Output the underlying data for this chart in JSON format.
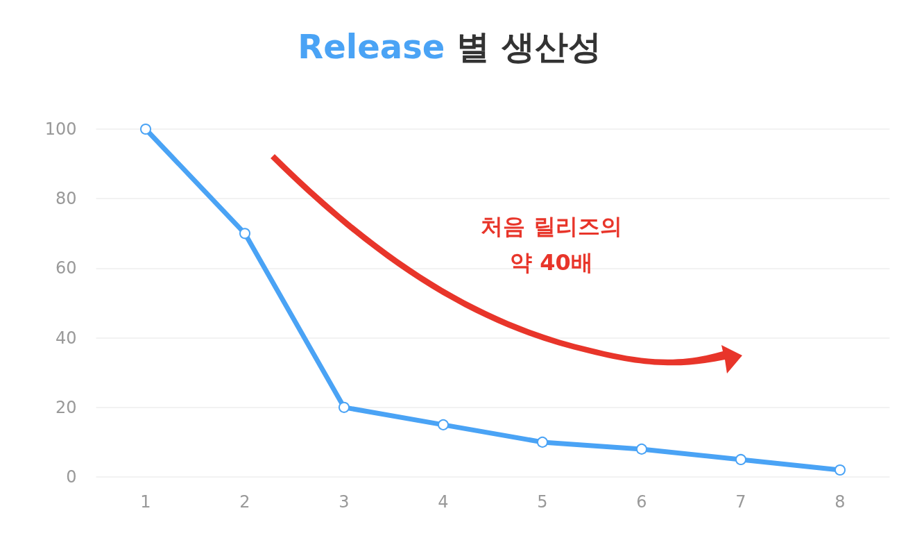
{
  "chart_data": {
    "type": "line",
    "title": "Release 별 생산성",
    "categories": [
      "1",
      "2",
      "3",
      "4",
      "5",
      "6",
      "7",
      "8"
    ],
    "series": [
      {
        "color": "#4aa3f5",
        "values": [
          100,
          70,
          20,
          15,
          10,
          8,
          5,
          2
        ]
      }
    ],
    "ylim": [
      0,
      100
    ],
    "yticks": [
      0,
      20,
      40,
      60,
      80,
      100
    ],
    "grid": "y",
    "marker": "circle",
    "line_style": "solid",
    "annotations": [
      "처음 릴리즈의\n약 40배"
    ]
  }
}
